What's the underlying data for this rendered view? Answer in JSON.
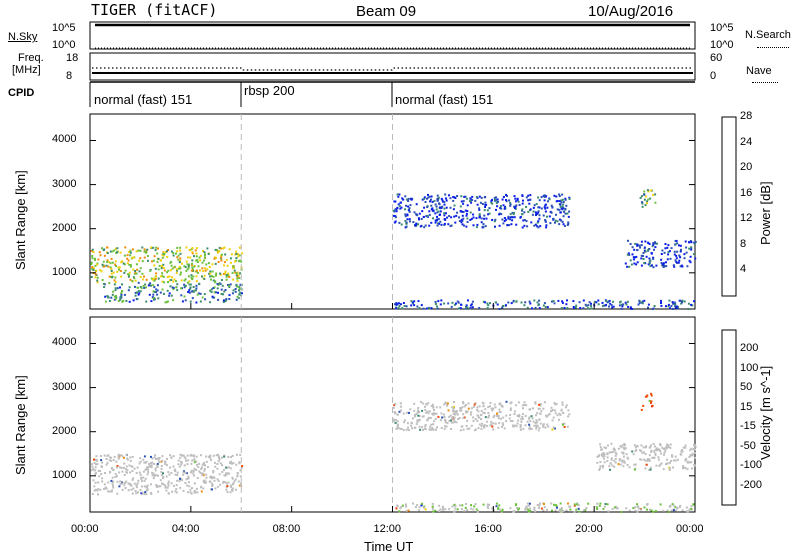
{
  "header": {
    "station": "TIGER (fitACF)",
    "beam": "Beam 09",
    "date": "10/Aug/2016"
  },
  "top_panels": {
    "nsky_label": "N.Sky",
    "nsky_ticks": [
      "10^5",
      "10^0"
    ],
    "nsearch_label": "N.Search",
    "freq_label_1": "Freq.",
    "freq_label_2": "[MHz]",
    "freq_ticks": [
      "18",
      "8"
    ],
    "nave_ticks": [
      "60",
      "0"
    ],
    "nave_label": "Nave",
    "cpid_label": "CPID"
  },
  "cpid_segments": [
    {
      "label": "normal (fast) 151",
      "start": 0
    },
    {
      "label": "rbsp 200",
      "start": 6
    },
    {
      "label": "normal (fast) 151",
      "start": 12
    }
  ],
  "chart_data": [
    {
      "type": "heatmap",
      "name": "power-panel",
      "ylabel": "Slant Range [km]",
      "xlim": [
        0,
        24
      ],
      "ylim": [
        180,
        4600
      ],
      "yticks": [
        "1000",
        "2000",
        "3000",
        "4000"
      ],
      "colorbar": {
        "label": "Power [dB]",
        "ticks": [
          "4",
          "8",
          "12",
          "16",
          "20",
          "24",
          "28"
        ],
        "colors": [
          "#0a1ee6",
          "#2a50b4",
          "#3c8c6e",
          "#6cc03c",
          "#f0d00a",
          "#f08c0a",
          "#e60a0a"
        ]
      },
      "regions": [
        {
          "x": [
            0,
            6
          ],
          "y": [
            800,
            1600
          ],
          "value": 18
        },
        {
          "x": [
            0.5,
            6
          ],
          "y": [
            350,
            800
          ],
          "value": 10
        },
        {
          "x": [
            12,
            19
          ],
          "y": [
            2050,
            2800
          ],
          "value": 6
        },
        {
          "x": [
            21.2,
            24
          ],
          "y": [
            1150,
            1750
          ],
          "value": 6
        },
        {
          "x": [
            21.8,
            22.4
          ],
          "y": [
            2500,
            2900
          ],
          "value": 14
        },
        {
          "x": [
            12,
            24
          ],
          "y": [
            200,
            400
          ],
          "value": 8
        }
      ]
    },
    {
      "type": "heatmap",
      "name": "velocity-panel",
      "ylabel": "Slant Range [km]",
      "xlim": [
        0,
        24
      ],
      "ylim": [
        180,
        4600
      ],
      "yticks": [
        "1000",
        "2000",
        "3000",
        "4000"
      ],
      "colorbar": {
        "label": "Velocity [m s^-1]",
        "ticks": [
          "200",
          "100",
          "50",
          "15",
          "-15",
          "-50",
          "-100",
          "-200"
        ],
        "colors": [
          "#0a1ee6",
          "#2a50b4",
          "#3c8c6e",
          "#6cc03c",
          "#bebebe",
          "#f0d00a",
          "#f08c0a",
          "#f04a0a",
          "#e60a0a"
        ]
      },
      "regions": [
        {
          "x": [
            0,
            6
          ],
          "y": [
            600,
            1500
          ],
          "value": 0
        },
        {
          "x": [
            12,
            19
          ],
          "y": [
            2050,
            2700
          ],
          "value": 0
        },
        {
          "x": [
            20,
            24
          ],
          "y": [
            1150,
            1750
          ],
          "value": 0
        },
        {
          "x": [
            21.8,
            22.3
          ],
          "y": [
            2500,
            2900
          ],
          "value": -180
        },
        {
          "x": [
            12,
            24
          ],
          "y": [
            200,
            400
          ],
          "value": 10
        }
      ]
    }
  ],
  "x_axis": {
    "label": "Time UT",
    "ticks": [
      "00:00",
      "04:00",
      "08:00",
      "12:00",
      "16:00",
      "20:00",
      "00:00"
    ]
  }
}
